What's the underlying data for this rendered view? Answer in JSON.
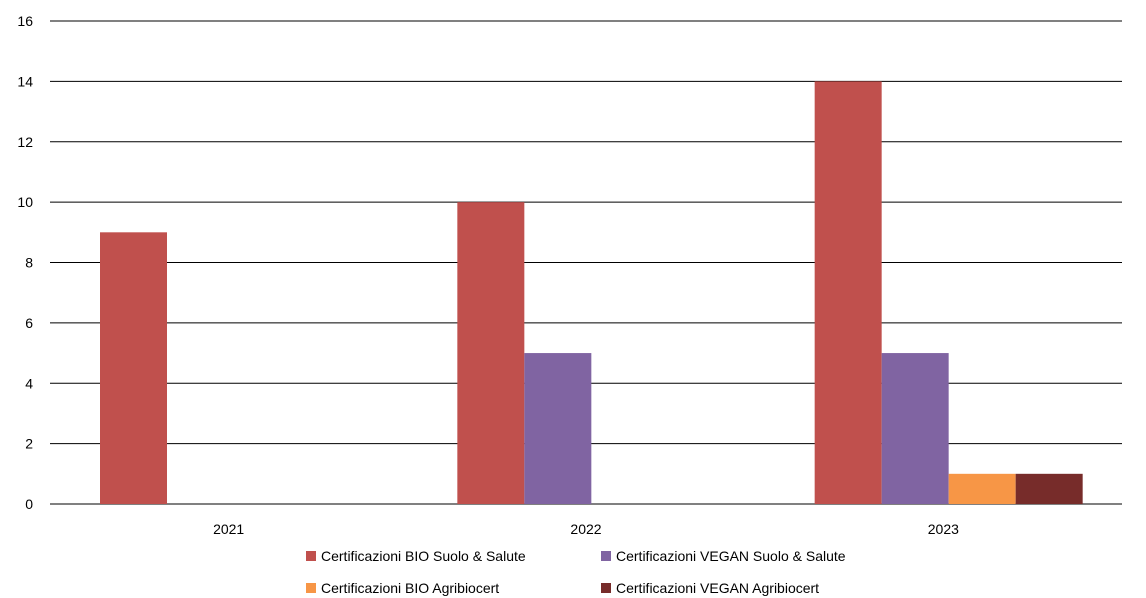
{
  "chart_data": {
    "type": "bar",
    "categories": [
      "2021",
      "2022",
      "2023"
    ],
    "y_ticks": [
      "0",
      "2",
      "4",
      "6",
      "8",
      "10",
      "12",
      "14",
      "16"
    ],
    "ylim": [
      0,
      16
    ],
    "grid": true,
    "legend_position": "bottom",
    "series": [
      {
        "name": "Certificazioni BIO Suolo & Salute",
        "color": "#C0504D",
        "values": [
          9,
          10,
          14
        ]
      },
      {
        "name": "Certificazioni VEGAN Suolo & Salute",
        "color": "#8064A2",
        "values": [
          0,
          5,
          5
        ]
      },
      {
        "name": "Certificazioni BIO Agribiocert",
        "color": "#F79646",
        "values": [
          0,
          0,
          1
        ]
      },
      {
        "name": "Certificazioni VEGAN Agribiocert",
        "color": "#772C2A",
        "values": [
          0,
          0,
          1
        ]
      }
    ]
  }
}
